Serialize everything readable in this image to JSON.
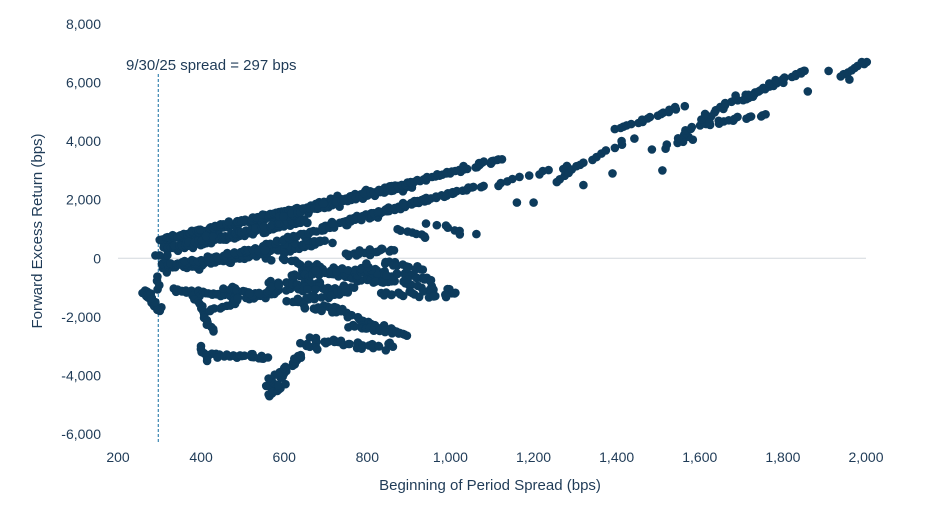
{
  "chart_data": {
    "type": "scatter",
    "xlabel": "Beginning of Period Spread (bps)",
    "ylabel": "Forward Excess Return (bps)",
    "xlim": [
      200,
      2000
    ],
    "ylim": [
      -6000,
      8000
    ],
    "xticks": [
      200,
      400,
      600,
      800,
      1000,
      1200,
      1400,
      1600,
      1800,
      2000
    ],
    "yticks": [
      -6000,
      -4000,
      -2000,
      0,
      2000,
      4000,
      6000,
      8000
    ],
    "xtick_labels": [
      "200",
      "400",
      "600",
      "800",
      "1,000",
      "1,200",
      "1,400",
      "1,600",
      "1,800",
      "2,000"
    ],
    "ytick_labels": [
      "-6,000",
      "-4,000",
      "-2,000",
      "0",
      "2,000",
      "4,000",
      "6,000",
      "8,000"
    ],
    "grid": false,
    "marker_color": "#0d3b5c",
    "annotation": {
      "text": "9/30/25 spread = 297 bps",
      "x": 297,
      "style": "dashed vertical line"
    },
    "series": [
      {
        "clusters": [
          {
            "from": [
              300,
              600
            ],
            "to": [
              900,
              2500
            ],
            "n": 260,
            "spread": 260
          },
          {
            "from": [
              320,
              300
            ],
            "to": [
              650,
              1300
            ],
            "n": 150,
            "spread": 300
          },
          {
            "from": [
              350,
              -300
            ],
            "to": [
              700,
              600
            ],
            "n": 110,
            "spread": 350
          },
          {
            "from": [
              600,
              1400
            ],
            "to": [
              1120,
              3400
            ],
            "n": 90,
            "spread": 180
          },
          {
            "from": [
              700,
              1100
            ],
            "to": [
              1080,
              2500
            ],
            "n": 60,
            "spread": 200
          },
          {
            "from": [
              500,
              200
            ],
            "to": [
              940,
              2000
            ],
            "n": 70,
            "spread": 220
          },
          {
            "from": [
              260,
              -1100
            ],
            "to": [
              300,
              -1800
            ],
            "n": 18,
            "spread": 120
          },
          {
            "from": [
              285,
              -1500
            ],
            "to": [
              320,
              100
            ],
            "n": 12,
            "spread": 150
          },
          {
            "from": [
              320,
              -300
            ],
            "to": [
              560,
              300
            ],
            "n": 60,
            "spread": 250
          },
          {
            "from": [
              330,
              -1100
            ],
            "to": [
              480,
              -1300
            ],
            "n": 25,
            "spread": 180
          },
          {
            "from": [
              460,
              -1000
            ],
            "to": [
              560,
              -1300
            ],
            "n": 18,
            "spread": 200
          },
          {
            "from": [
              500,
              -1400
            ],
            "to": [
              680,
              -800
            ],
            "n": 25,
            "spread": 250
          },
          {
            "from": [
              390,
              -1400
            ],
            "to": [
              430,
              -2500
            ],
            "n": 15,
            "spread": 150
          },
          {
            "from": [
              420,
              -1800
            ],
            "to": [
              560,
              -1100
            ],
            "n": 20,
            "spread": 180
          },
          {
            "from": [
              580,
              0
            ],
            "to": [
              1010,
              -1200
            ],
            "n": 40,
            "spread": 250
          },
          {
            "from": [
              640,
              -400
            ],
            "to": [
              850,
              -800
            ],
            "n": 45,
            "spread": 280
          },
          {
            "from": [
              780,
              -400
            ],
            "to": [
              960,
              -700
            ],
            "n": 30,
            "spread": 220
          },
          {
            "from": [
              620,
              -600
            ],
            "to": [
              820,
              -300
            ],
            "n": 30,
            "spread": 300
          },
          {
            "from": [
              560,
              -800
            ],
            "to": [
              760,
              -1100
            ],
            "n": 35,
            "spread": 300
          },
          {
            "from": [
              610,
              -1500
            ],
            "to": [
              760,
              -1100
            ],
            "n": 25,
            "spread": 250
          },
          {
            "from": [
              700,
              -1600
            ],
            "to": [
              860,
              -2500
            ],
            "n": 25,
            "spread": 200
          },
          {
            "from": [
              640,
              -1700
            ],
            "to": [
              740,
              -1800
            ],
            "n": 12,
            "spread": 150
          },
          {
            "from": [
              750,
              100
            ],
            "to": [
              860,
              300
            ],
            "n": 20,
            "spread": 200
          },
          {
            "from": [
              840,
              -100
            ],
            "to": [
              930,
              -400
            ],
            "n": 15,
            "spread": 180
          },
          {
            "from": [
              830,
              -1200
            ],
            "to": [
              990,
              -1300
            ],
            "n": 20,
            "spread": 150
          },
          {
            "from": [
              760,
              -2300
            ],
            "to": [
              900,
              -2600
            ],
            "n": 25,
            "spread": 200
          },
          {
            "from": [
              660,
              -2800
            ],
            "to": [
              860,
              -3000
            ],
            "n": 30,
            "spread": 180
          },
          {
            "from": [
              640,
              -2900
            ],
            "to": [
              680,
              -3100
            ],
            "n": 6,
            "spread": 100
          },
          {
            "from": [
              410,
              -3300
            ],
            "to": [
              560,
              -3400
            ],
            "n": 25,
            "spread": 150
          },
          {
            "from": [
              560,
              -4400
            ],
            "to": [
              640,
              -3300
            ],
            "n": 25,
            "spread": 200
          },
          {
            "from": [
              560,
              -4700
            ],
            "to": [
              600,
              -4300
            ],
            "n": 10,
            "spread": 150
          },
          {
            "from": [
              400,
              -3000
            ],
            "to": [
              420,
              -3500
            ],
            "n": 6,
            "spread": 80
          },
          {
            "from": [
              880,
              1000
            ],
            "to": [
              940,
              700
            ],
            "n": 8,
            "spread": 150
          },
          {
            "from": [
              950,
              1200
            ],
            "to": [
              1050,
              800
            ],
            "n": 8,
            "spread": 150
          },
          {
            "from": [
              1100,
              2500
            ],
            "to": [
              1300,
              3200
            ],
            "n": 12,
            "spread": 150
          },
          {
            "from": [
              1250,
              2600
            ],
            "to": [
              1430,
              4100
            ],
            "n": 15,
            "spread": 180
          },
          {
            "from": [
              1400,
              4400
            ],
            "to": [
              1560,
              5200
            ],
            "n": 18,
            "spread": 200
          },
          {
            "from": [
              1480,
              3800
            ],
            "to": [
              1590,
              4000
            ],
            "n": 6,
            "spread": 150
          },
          {
            "from": [
              1550,
              4100
            ],
            "to": [
              1700,
              5600
            ],
            "n": 25,
            "spread": 220
          },
          {
            "from": [
              1620,
              4600
            ],
            "to": [
              1760,
              4900
            ],
            "n": 15,
            "spread": 200
          },
          {
            "from": [
              1700,
              5400
            ],
            "to": [
              1850,
              6400
            ],
            "n": 25,
            "spread": 200
          },
          {
            "from": [
              1940,
              6200
            ],
            "to": [
              2000,
              6700
            ],
            "n": 8,
            "spread": 120
          }
        ],
        "points": [
          {
            "x": 1510,
            "y": 3000
          },
          {
            "x": 1860,
            "y": 5700
          },
          {
            "x": 1910,
            "y": 6400
          },
          {
            "x": 1960,
            "y": 6100
          },
          {
            "x": 1990,
            "y": 6700
          },
          {
            "x": 1850,
            "y": 6400
          },
          {
            "x": 1390,
            "y": 2900
          },
          {
            "x": 1320,
            "y": 2500
          },
          {
            "x": 1200,
            "y": 1900
          },
          {
            "x": 1160,
            "y": 1900
          },
          {
            "x": 1010,
            "y": -1200
          },
          {
            "x": 960,
            "y": -1300
          },
          {
            "x": 870,
            "y": -2500
          },
          {
            "x": 300,
            "y": 100
          },
          {
            "x": 290,
            "y": 100
          }
        ]
      }
    ]
  }
}
